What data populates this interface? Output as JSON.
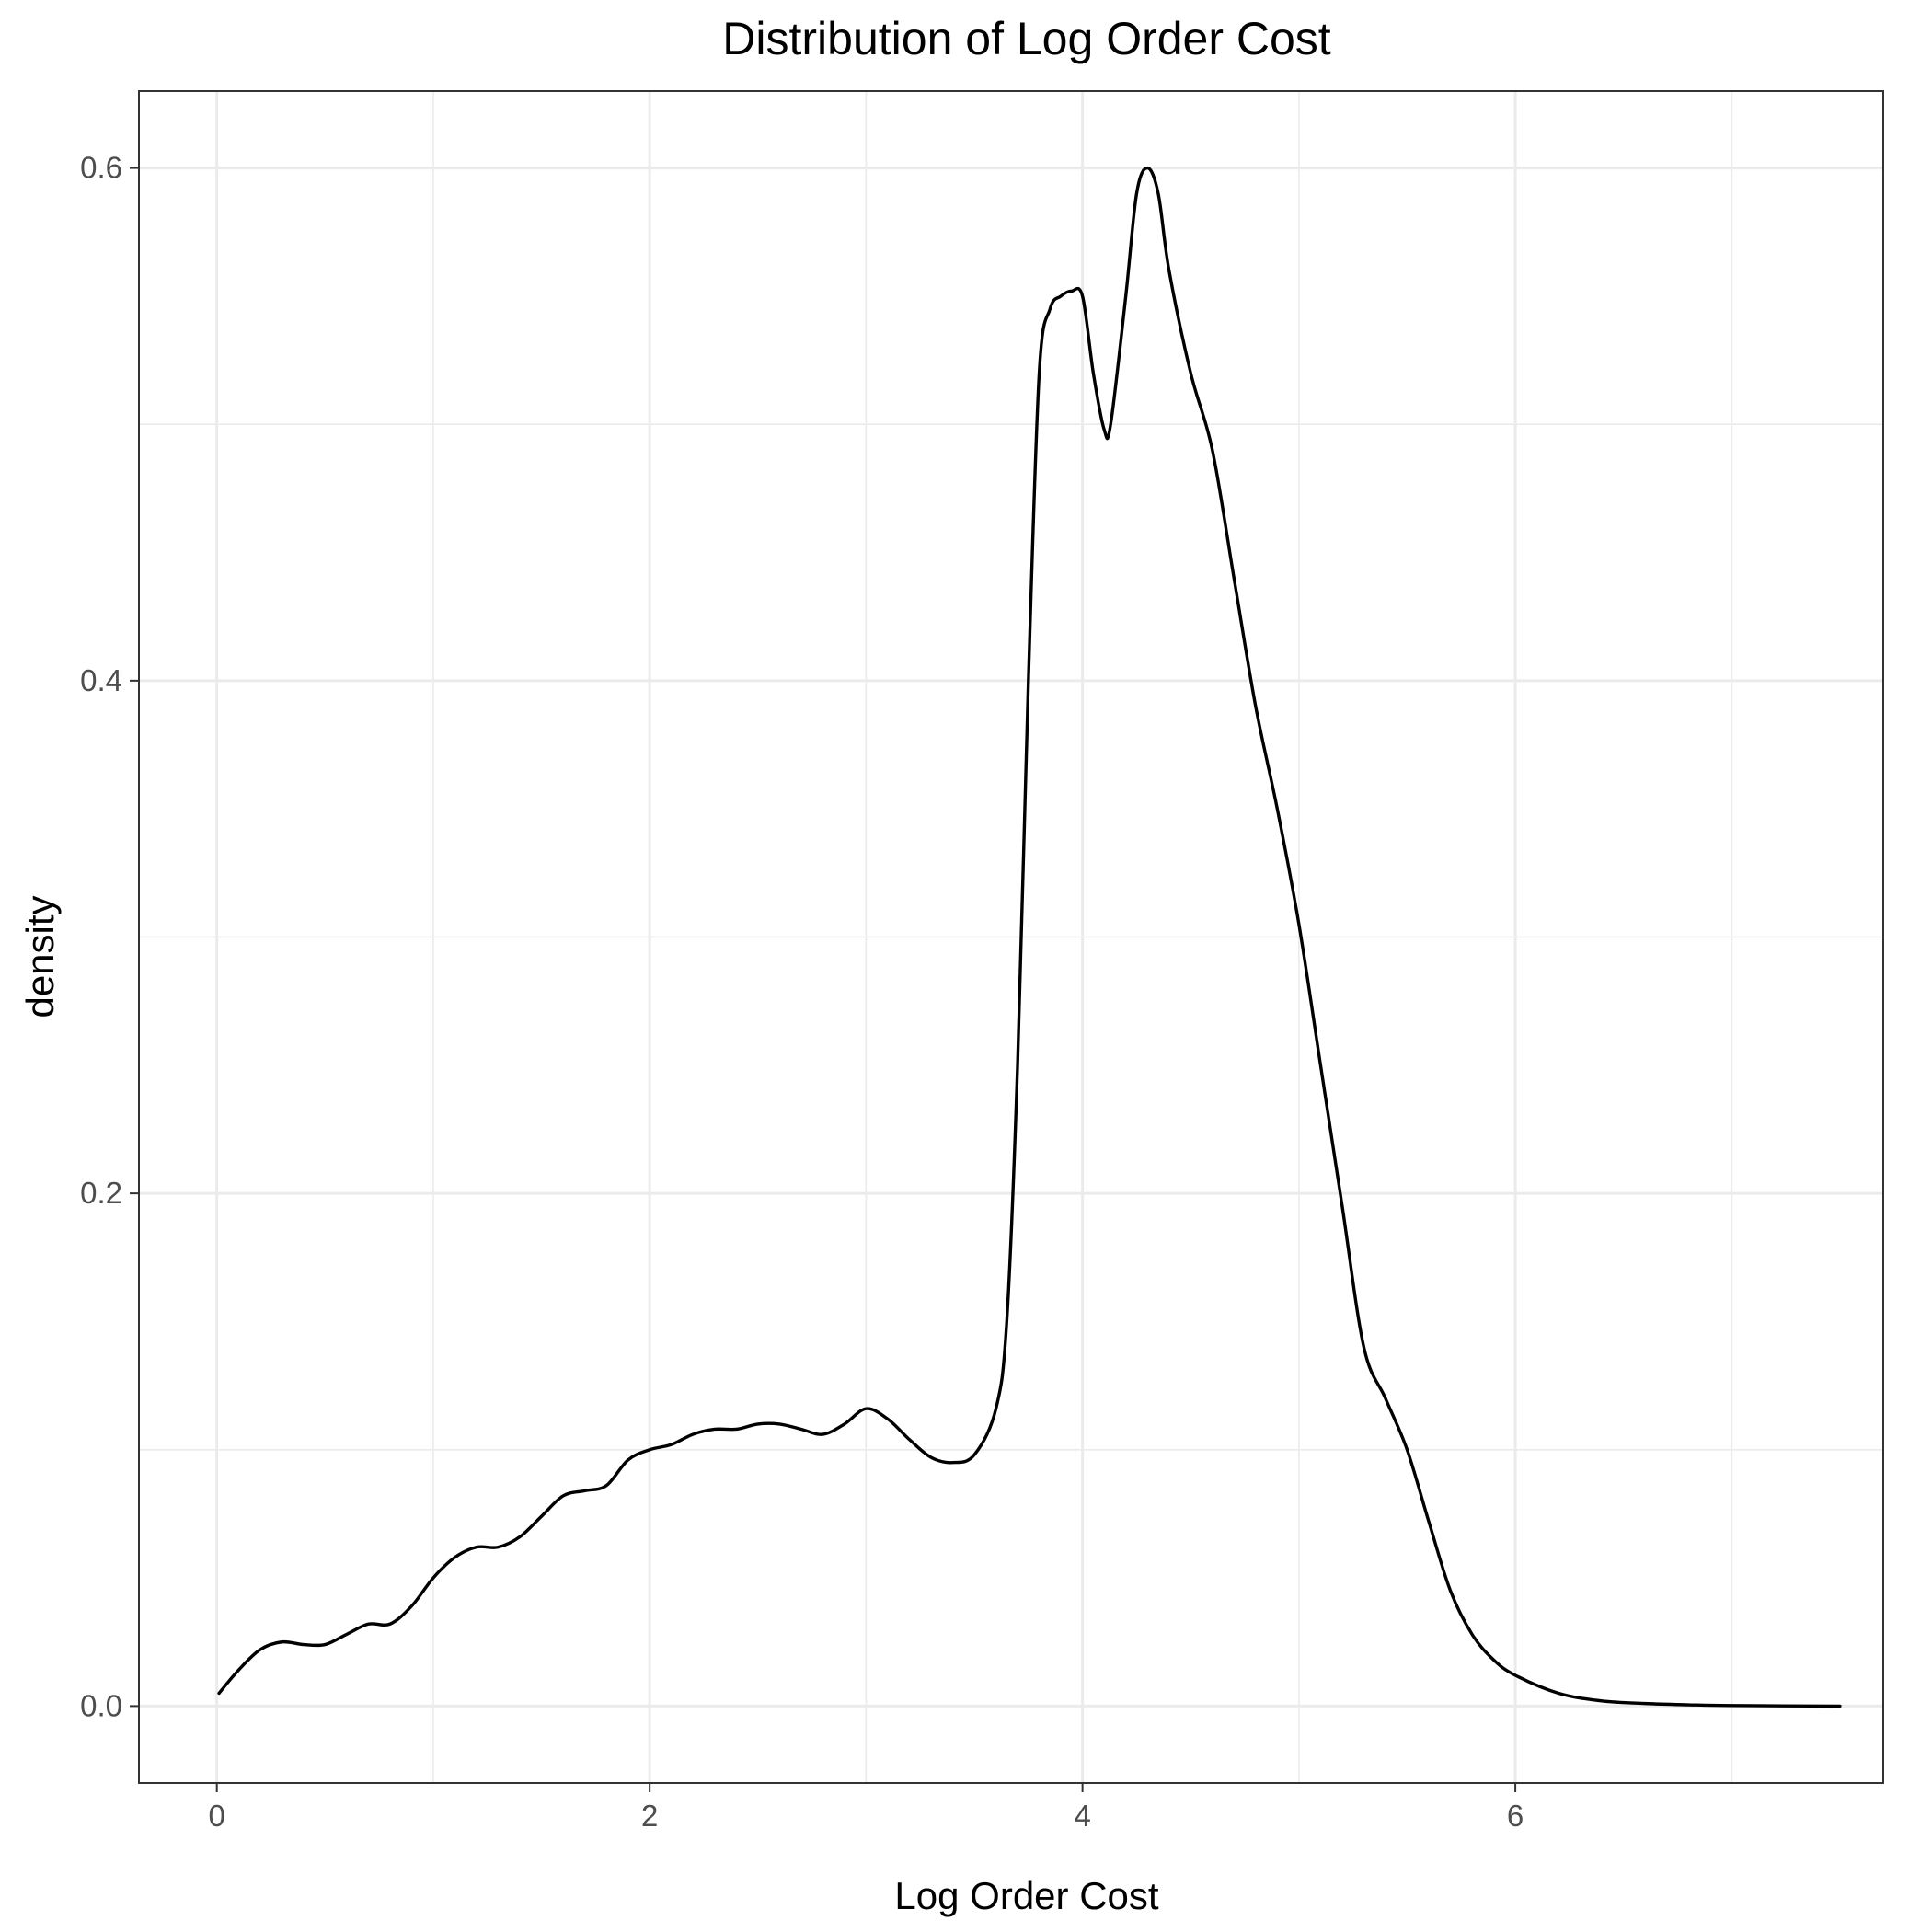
{
  "chart_data": {
    "type": "line",
    "title": "Distribution of Log Order Cost",
    "xlabel": "Log Order Cost",
    "ylabel": "density",
    "xlim": [
      -0.36,
      7.7
    ],
    "ylim": [
      -0.03,
      0.63
    ],
    "x_ticks": [
      0,
      2,
      4,
      6
    ],
    "x_tick_labels": [
      "0",
      "2",
      "4",
      "6"
    ],
    "x_minor_ticks": [
      1,
      3,
      5,
      7
    ],
    "y_ticks": [
      0.0,
      0.2,
      0.4,
      0.6
    ],
    "y_tick_labels": [
      "0.0",
      "0.2",
      "0.4",
      "0.6"
    ],
    "y_minor_ticks": [
      0.1,
      0.3,
      0.5
    ],
    "grid": true,
    "legend": "none",
    "series": [
      {
        "color": "#000000",
        "x": [
          0.01,
          0.1,
          0.2,
          0.3,
          0.4,
          0.5,
          0.6,
          0.7,
          0.8,
          0.9,
          1.0,
          1.1,
          1.2,
          1.3,
          1.4,
          1.5,
          1.6,
          1.7,
          1.8,
          1.9,
          2.0,
          2.1,
          2.2,
          2.3,
          2.4,
          2.5,
          2.6,
          2.7,
          2.8,
          2.9,
          3.0,
          3.1,
          3.2,
          3.3,
          3.4,
          3.5,
          3.6,
          3.65,
          3.7,
          3.75,
          3.8,
          3.85,
          3.9,
          3.95,
          4.0,
          4.05,
          4.1,
          4.13,
          4.2,
          4.25,
          4.3,
          4.35,
          4.4,
          4.5,
          4.6,
          4.7,
          4.8,
          4.9,
          5.0,
          5.1,
          5.2,
          5.3,
          5.4,
          5.5,
          5.6,
          5.7,
          5.8,
          5.9,
          6.0,
          6.2,
          6.4,
          6.6,
          6.8,
          7.0,
          7.5
        ],
        "y": [
          0.005,
          0.014,
          0.022,
          0.025,
          0.024,
          0.024,
          0.028,
          0.032,
          0.032,
          0.039,
          0.05,
          0.058,
          0.062,
          0.062,
          0.066,
          0.074,
          0.082,
          0.084,
          0.086,
          0.096,
          0.1,
          0.102,
          0.106,
          0.108,
          0.108,
          0.11,
          0.11,
          0.108,
          0.106,
          0.11,
          0.116,
          0.112,
          0.104,
          0.097,
          0.095,
          0.098,
          0.116,
          0.15,
          0.25,
          0.4,
          0.52,
          0.545,
          0.55,
          0.552,
          0.55,
          0.52,
          0.498,
          0.5,
          0.55,
          0.59,
          0.6,
          0.59,
          0.56,
          0.52,
          0.49,
          0.44,
          0.39,
          0.35,
          0.305,
          0.25,
          0.195,
          0.14,
          0.12,
          0.1,
          0.072,
          0.045,
          0.028,
          0.018,
          0.012,
          0.005,
          0.002,
          0.001,
          0.0005,
          0.0002,
          0.0
        ]
      }
    ]
  }
}
